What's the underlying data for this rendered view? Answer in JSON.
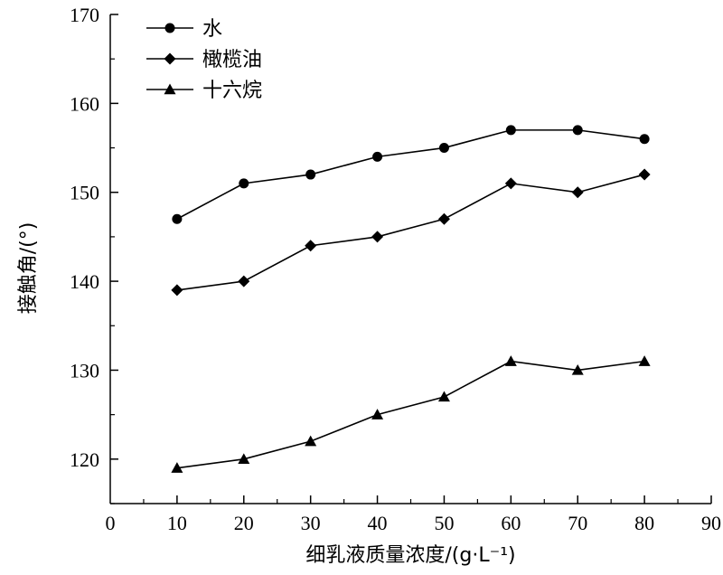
{
  "chart_data": {
    "type": "line",
    "xlabel": "细乳液质量浓度/(g·L⁻¹)",
    "ylabel": "接触角/(°)",
    "xlim": [
      0,
      90
    ],
    "ylim": [
      115,
      170
    ],
    "x_ticks": [
      "0",
      "10",
      "20",
      "30",
      "40",
      "50",
      "60",
      "70",
      "80",
      "90"
    ],
    "y_ticks": [
      "120",
      "130",
      "140",
      "150",
      "160",
      "170"
    ],
    "legend_position": "top-left",
    "x": [
      10,
      20,
      30,
      40,
      50,
      60,
      70,
      80
    ],
    "series": [
      {
        "name": "水",
        "marker": "circle",
        "values": [
          147,
          151,
          152,
          154,
          155,
          157,
          157,
          156
        ]
      },
      {
        "name": "橄榄油",
        "marker": "diamond",
        "values": [
          139,
          140,
          144,
          145,
          147,
          151,
          150,
          152
        ]
      },
      {
        "name": "十六烷",
        "marker": "triangle",
        "values": [
          119,
          120,
          122,
          125,
          127,
          131,
          130,
          131
        ]
      }
    ]
  }
}
